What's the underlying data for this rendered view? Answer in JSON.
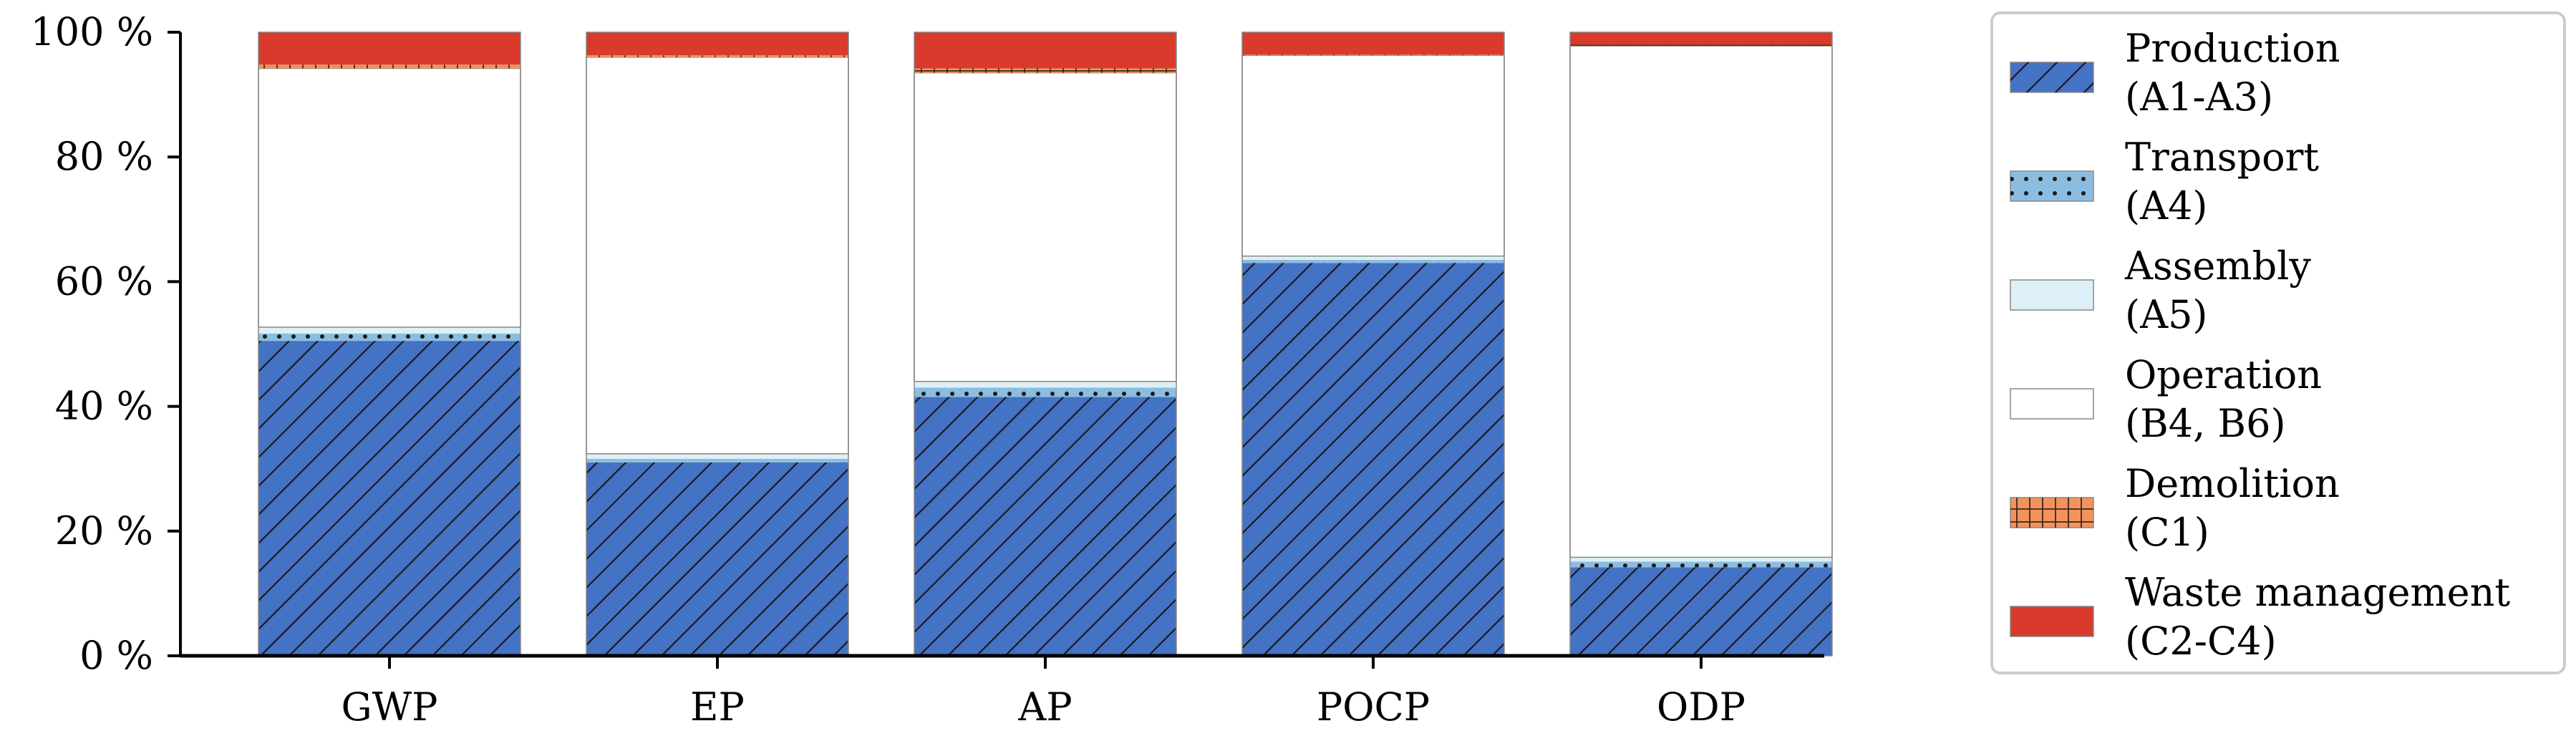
{
  "chart_data": {
    "type": "bar",
    "stacked": true,
    "normalized": true,
    "title": "",
    "xlabel": "",
    "ylabel": "",
    "ylim": [
      0,
      100
    ],
    "yticks": [
      0,
      20,
      40,
      60,
      80,
      100
    ],
    "ytick_labels": [
      "0 %",
      "20 %",
      "40 %",
      "60 %",
      "80 %",
      "100 %"
    ],
    "categories": [
      "GWP",
      "EP",
      "AP",
      "POCP",
      "ODP"
    ],
    "legend_position": "right",
    "series": [
      {
        "name": "Production",
        "sub": "(A1-A3)",
        "color": "#4472c4",
        "pattern": "hatch-diagonal",
        "values": [
          50.5,
          31.0,
          41.5,
          63.0,
          14.2
        ]
      },
      {
        "name": "Transport",
        "sub": "(A4)",
        "color": "#8cbde0",
        "pattern": "dots",
        "values": [
          1.2,
          0.6,
          1.5,
          0.5,
          0.9
        ]
      },
      {
        "name": "Assembly",
        "sub": "(A5)",
        "color": "#ddf0f7",
        "pattern": "solid",
        "values": [
          1.0,
          0.8,
          1.0,
          0.6,
          0.7
        ]
      },
      {
        "name": "Operation",
        "sub": "(B4, B6)",
        "color": "#ffffff",
        "pattern": "solid",
        "values": [
          41.5,
          63.6,
          49.5,
          32.2,
          82.0
        ]
      },
      {
        "name": "Demolition",
        "sub": "(C1)",
        "color": "#f2935e",
        "pattern": "grid",
        "values": [
          0.6,
          0.3,
          0.7,
          0.1,
          0.2
        ]
      },
      {
        "name": "Waste management",
        "sub": "(C2-C4)",
        "color": "#d93a2b",
        "pattern": "solid",
        "values": [
          5.2,
          3.7,
          5.8,
          3.6,
          2.0
        ]
      }
    ]
  }
}
